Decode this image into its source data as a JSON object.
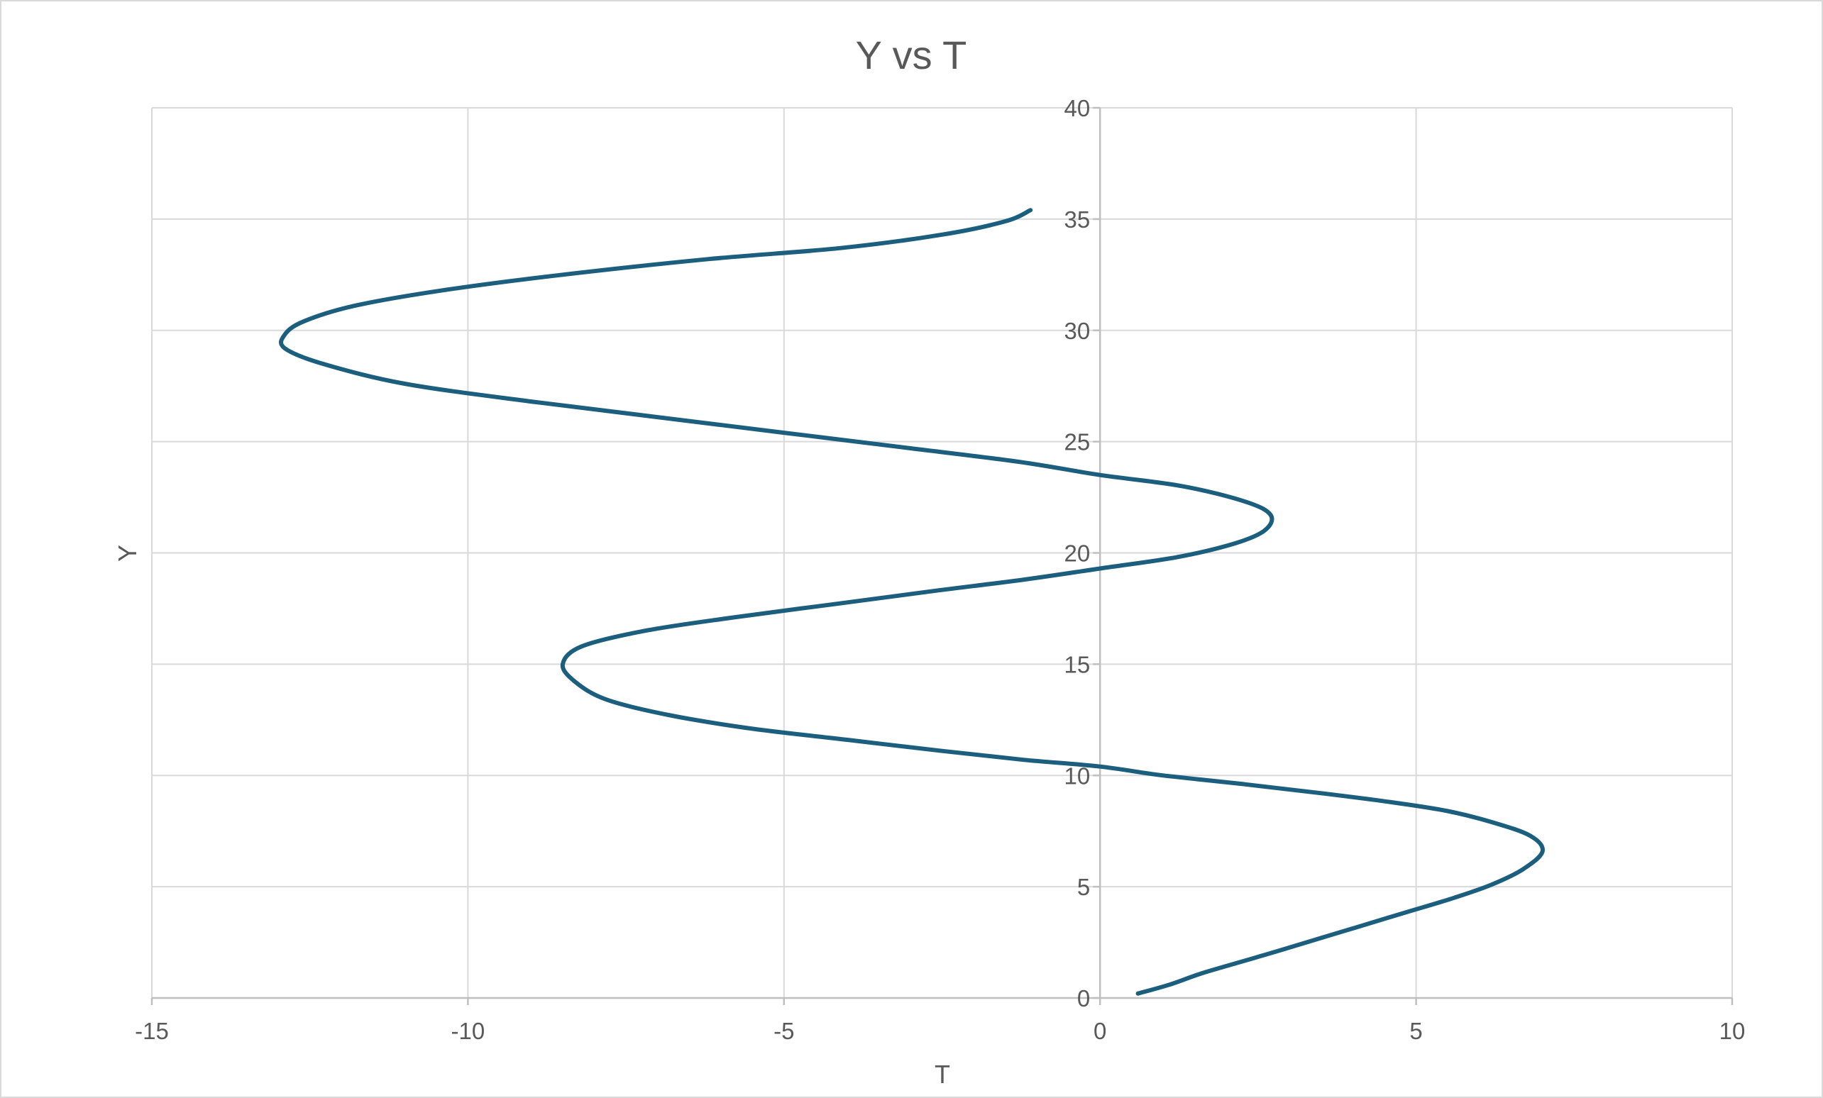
{
  "chart_data": {
    "type": "scatter",
    "title": "Y vs T",
    "xlabel": "T",
    "ylabel": "Y",
    "xlim": [
      -15,
      10
    ],
    "ylim": [
      0,
      40
    ],
    "x_major_unit": 5,
    "y_major_unit": 5,
    "x_ticks": [
      "-15",
      "-10",
      "-5",
      "0",
      "5",
      "10"
    ],
    "y_ticks": [
      "0",
      "5",
      "10",
      "15",
      "20",
      "25",
      "30",
      "35",
      "40"
    ],
    "grid": true,
    "legend": "none",
    "line_color": "#1b5e7e",
    "series": [
      {
        "style": "smooth-line",
        "points": [
          [
            0.6,
            0.2
          ],
          [
            1.1,
            0.6
          ],
          [
            1.6,
            1.1
          ],
          [
            2.2,
            1.6
          ],
          [
            2.8,
            2.1
          ],
          [
            3.5,
            2.7
          ],
          [
            4.2,
            3.3
          ],
          [
            4.9,
            3.9
          ],
          [
            5.6,
            4.5
          ],
          [
            6.2,
            5.1
          ],
          [
            6.7,
            5.8
          ],
          [
            7.0,
            6.6
          ],
          [
            6.8,
            7.3
          ],
          [
            6.2,
            7.9
          ],
          [
            5.5,
            8.4
          ],
          [
            4.6,
            8.8
          ],
          [
            3.5,
            9.2
          ],
          [
            2.3,
            9.6
          ],
          [
            1.0,
            10.0
          ],
          [
            0.0,
            10.4
          ],
          [
            -1.2,
            10.7
          ],
          [
            -2.5,
            11.1
          ],
          [
            -4.0,
            11.6
          ],
          [
            -5.5,
            12.1
          ],
          [
            -6.8,
            12.7
          ],
          [
            -7.8,
            13.4
          ],
          [
            -8.3,
            14.2
          ],
          [
            -8.5,
            15.0
          ],
          [
            -8.2,
            15.8
          ],
          [
            -7.2,
            16.5
          ],
          [
            -5.8,
            17.1
          ],
          [
            -4.2,
            17.7
          ],
          [
            -2.6,
            18.3
          ],
          [
            -1.2,
            18.8
          ],
          [
            0.0,
            19.3
          ],
          [
            1.2,
            19.8
          ],
          [
            2.1,
            20.4
          ],
          [
            2.6,
            21.0
          ],
          [
            2.7,
            21.7
          ],
          [
            2.3,
            22.3
          ],
          [
            1.3,
            23.0
          ],
          [
            0.0,
            23.5
          ],
          [
            -1.3,
            24.1
          ],
          [
            -3.0,
            24.7
          ],
          [
            -5.0,
            25.4
          ],
          [
            -7.0,
            26.1
          ],
          [
            -9.0,
            26.8
          ],
          [
            -11.0,
            27.6
          ],
          [
            -12.3,
            28.5
          ],
          [
            -12.9,
            29.2
          ],
          [
            -12.9,
            29.8
          ],
          [
            -12.6,
            30.4
          ],
          [
            -11.8,
            31.1
          ],
          [
            -10.4,
            31.8
          ],
          [
            -8.5,
            32.5
          ],
          [
            -6.2,
            33.2
          ],
          [
            -4.1,
            33.7
          ],
          [
            -2.5,
            34.3
          ],
          [
            -1.5,
            34.9
          ],
          [
            -1.1,
            35.4
          ]
        ]
      }
    ]
  }
}
